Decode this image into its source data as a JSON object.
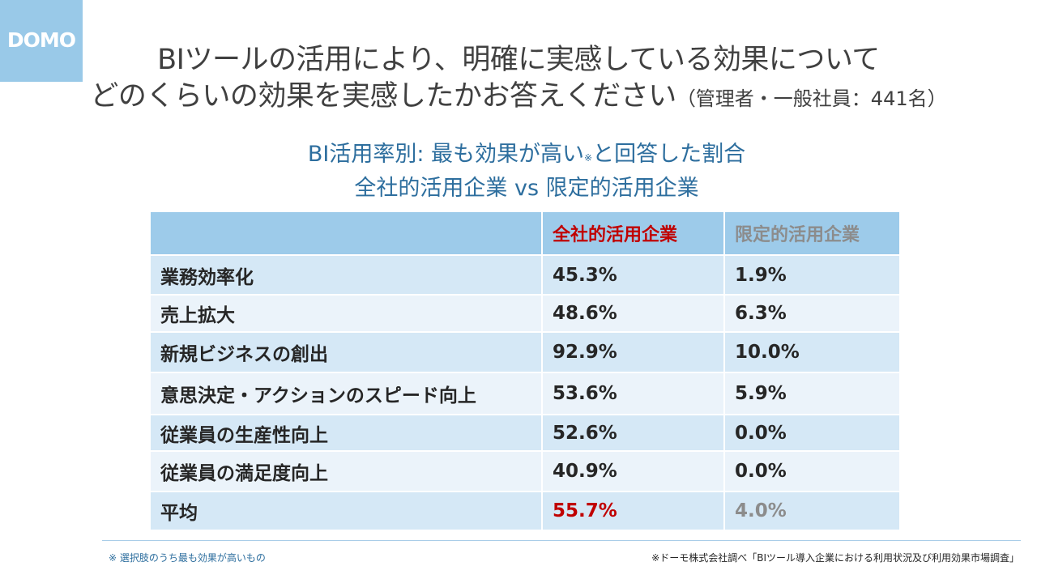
{
  "logo": {
    "text": "DOMO"
  },
  "title": {
    "line1": "BIツールの活用により、明確に実感している効果について",
    "line2": "どのくらいの効果を実感したかお答えください",
    "note": "（管理者・一般社員：441名）"
  },
  "subtitle": {
    "line1_a": "BI活用率別: 最も効果が高い",
    "line1_mark": "※",
    "line1_b": "と回答した割合",
    "line2": "全社的活用企業 vs 限定的活用企業"
  },
  "table": {
    "headers": [
      "",
      "全社的活用企業",
      "限定的活用企業"
    ],
    "rows": [
      {
        "label": "業務効率化",
        "all": "45.3%",
        "limited": "1.9%"
      },
      {
        "label": "売上拡大",
        "all": "48.6%",
        "limited": "6.3%"
      },
      {
        "label": "新規ビジネスの創出",
        "all": "92.9%",
        "limited": "10.0%"
      },
      {
        "label": "意思決定・アクションのスピード向上",
        "all": "53.6%",
        "limited": "5.9%"
      },
      {
        "label": "従業員の生産性向上",
        "all": "52.6%",
        "limited": "0.0%"
      },
      {
        "label": "従業員の満足度向上",
        "all": "40.9%",
        "limited": "0.0%"
      },
      {
        "label": "平均",
        "all": "55.7%",
        "limited": "4.0%"
      }
    ]
  },
  "footer": {
    "left": "※ 選択肢のうち最も効果が高いもの",
    "right": "※ドーモ株式会社調べ「BIツール導入企業における利用状況及び利用効果市場調査」"
  },
  "colors": {
    "logo_bg": "#99c9e8",
    "subtitle": "#2d6e9e",
    "header_bg": "#9dcbea",
    "row_odd": "#d5e8f6",
    "row_even": "#ebf3fa",
    "highlight_red": "#c00000",
    "muted_gray": "#8c8c8c"
  }
}
